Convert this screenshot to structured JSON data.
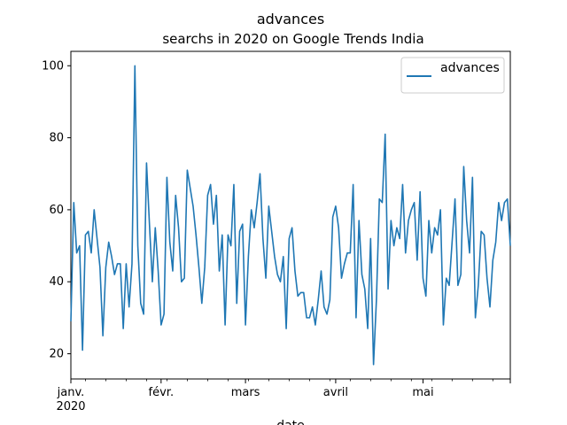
{
  "chart_data": {
    "type": "line",
    "title": "advances",
    "subtitle": "searchs in 2020 on Google Trends India",
    "xlabel": "date",
    "ylabel": "",
    "x_range": [
      "2020-01-01",
      "2020-05-31"
    ],
    "ylim": [
      13,
      104
    ],
    "y_ticks": [
      20,
      40,
      60,
      80,
      100
    ],
    "x_major_ticks": [
      {
        "date": "2020-01-01",
        "label": "janv.",
        "sublabel": "2020"
      },
      {
        "date": "2020-02-01",
        "label": "févr.",
        "sublabel": ""
      },
      {
        "date": "2020-03-01",
        "label": "mars",
        "sublabel": ""
      },
      {
        "date": "2020-04-01",
        "label": "avril",
        "sublabel": ""
      },
      {
        "date": "2020-05-01",
        "label": "mai",
        "sublabel": ""
      }
    ],
    "grid": false,
    "legend": {
      "position": "top-right",
      "entries": [
        "advances"
      ]
    },
    "series": [
      {
        "name": "advances",
        "color": "#1f77b4",
        "start_date": "2020-01-01",
        "step": "1 day",
        "values": [
          29,
          62,
          48,
          50,
          21,
          53,
          54,
          48,
          60,
          52,
          44,
          25,
          44,
          51,
          47,
          42,
          45,
          45,
          27,
          45,
          33,
          45,
          100,
          50,
          34,
          31,
          73,
          56,
          40,
          55,
          43,
          28,
          31,
          69,
          51,
          43,
          64,
          55,
          40,
          41,
          71,
          66,
          61,
          53,
          44,
          34,
          44,
          64,
          67,
          56,
          64,
          43,
          53,
          28,
          53,
          50,
          67,
          34,
          54,
          56,
          28,
          47,
          60,
          55,
          62,
          70,
          52,
          41,
          61,
          54,
          47,
          42,
          40,
          47,
          27,
          52,
          55,
          43,
          36,
          37,
          37,
          30,
          30,
          33,
          28,
          35,
          43,
          33,
          31,
          35,
          58,
          61,
          55,
          41,
          45,
          48,
          48,
          67,
          30,
          57,
          42,
          38,
          27,
          52,
          17,
          35,
          63,
          62,
          81,
          38,
          57,
          50,
          55,
          52,
          67,
          48,
          57,
          60,
          62,
          46,
          65,
          41,
          36,
          57,
          48,
          55,
          53,
          60,
          28,
          41,
          39,
          51,
          63,
          39,
          42,
          72,
          57,
          48,
          69,
          30,
          39,
          54,
          53,
          41,
          33,
          46,
          51,
          62,
          57,
          62,
          63,
          50
        ]
      }
    ]
  }
}
